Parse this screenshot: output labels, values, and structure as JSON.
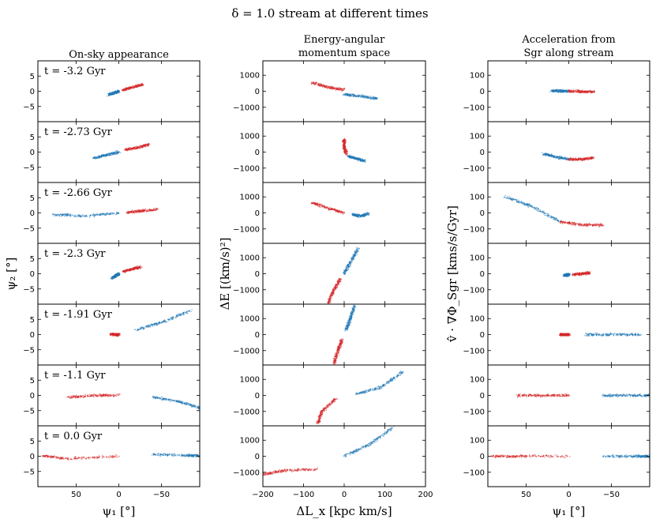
{
  "figure": {
    "title": "δ = 1.0 stream at different times",
    "columns": [
      {
        "title_lines": [
          "On-sky appearance"
        ]
      },
      {
        "title_lines": [
          "Energy-angular",
          "momentum space"
        ]
      },
      {
        "title_lines": [
          "Acceleration from",
          "Sgr along stream"
        ]
      }
    ],
    "ylabels": [
      "ψ₂ [°]",
      "ΔE [(km/s)²]",
      "v̂ · ∇Φ_Sgr [kms/s/Gyr]"
    ],
    "xlabels": [
      "ψ₁ [°]",
      "ΔL_x [kpc km/s]",
      "ψ₁ [°]"
    ],
    "time_labels": [
      "t = -3.2 Gyr",
      "t = -2.73 Gyr",
      "t = -2.66 Gyr",
      "t = -2.3 Gyr",
      "t = -1.91 Gyr",
      "t = -1.1 Gyr",
      "t = 0.0 Gyr"
    ],
    "colors": {
      "leading": "#d62728",
      "trailing": "#1f77b4"
    }
  },
  "chart_data": [
    {
      "type": "scatter",
      "name": "on-sky",
      "xlabel": "ψ₁ [°]",
      "ylabel": "ψ₂ [°]",
      "xlim": [
        95,
        -95
      ],
      "ylim": [
        -10,
        10
      ],
      "xticks": [
        50,
        0,
        -50
      ],
      "yticks": [
        5,
        0,
        -5
      ],
      "rows": [
        {
          "time": "t = -3.2 Gyr",
          "red": [
            [
              -5,
              0.5
            ],
            [
              -15,
              1.2
            ],
            [
              -28,
              2.2
            ]
          ],
          "blue": [
            [
              12,
              -1.2
            ],
            [
              5,
              -0.5
            ],
            [
              0,
              0
            ]
          ]
        },
        {
          "time": "t = -2.73 Gyr",
          "red": [
            [
              -8,
              0.8
            ],
            [
              -22,
              1.5
            ],
            [
              -35,
              2.5
            ]
          ],
          "blue": [
            [
              30,
              -2
            ],
            [
              15,
              -1
            ],
            [
              0,
              0
            ]
          ]
        },
        {
          "time": "t = -2.66 Gyr",
          "red": [
            [
              -10,
              0.2
            ],
            [
              -25,
              0.6
            ],
            [
              -45,
              1.2
            ]
          ],
          "blue": [
            [
              78,
              -0.5
            ],
            [
              40,
              -1
            ],
            [
              0,
              0
            ]
          ]
        },
        {
          "time": "t = -2.3 Gyr",
          "red": [
            [
              -5,
              0.8
            ],
            [
              -15,
              1.5
            ],
            [
              -25,
              2.2
            ]
          ],
          "blue": [
            [
              8,
              -1.5
            ],
            [
              3,
              -0.5
            ],
            [
              0,
              0
            ]
          ]
        },
        {
          "time": "t = -1.91 Gyr",
          "red": [
            [
              10,
              0.2
            ],
            [
              3,
              0
            ],
            [
              0,
              0
            ]
          ],
          "blue": [
            [
              -20,
              1.5
            ],
            [
              -50,
              4
            ],
            [
              -85,
              8
            ]
          ]
        },
        {
          "time": "t = -1.1 Gyr",
          "red": [
            [
              60,
              -0.6
            ],
            [
              30,
              0
            ],
            [
              0,
              0
            ]
          ],
          "blue": [
            [
              -40,
              -0.5
            ],
            [
              -70,
              -2
            ],
            [
              -95,
              -4
            ]
          ]
        },
        {
          "time": "t = 0.0 Gyr",
          "red": [
            [
              90,
              0.2
            ],
            [
              60,
              -0.8
            ],
            [
              0,
              0
            ]
          ],
          "blue": [
            [
              -40,
              0.6
            ],
            [
              -80,
              0.3
            ],
            [
              -95,
              0.2
            ]
          ]
        }
      ]
    },
    {
      "type": "scatter",
      "name": "energy-angular-momentum",
      "xlabel": "ΔL_x [kpc km/s]",
      "ylabel": "ΔE [(km/s)²]",
      "xlim": [
        -200,
        200
      ],
      "ylim": [
        -1900,
        1900
      ],
      "xticks": [
        -200,
        -100,
        0,
        100,
        200
      ],
      "yticks": [
        1000,
        0,
        -1000
      ],
      "rows": [
        {
          "time": "t = -3.2 Gyr",
          "red": [
            [
              -80,
              550
            ],
            [
              -40,
              250
            ],
            [
              0,
              100
            ]
          ],
          "blue": [
            [
              0,
              -200
            ],
            [
              40,
              -300
            ],
            [
              80,
              -450
            ]
          ]
        },
        {
          "time": "t = -2.73 Gyr",
          "red": [
            [
              0,
              800
            ],
            [
              0,
              350
            ],
            [
              5,
              -100
            ]
          ],
          "blue": [
            [
              10,
              -250
            ],
            [
              30,
              -400
            ],
            [
              50,
              -550
            ]
          ]
        },
        {
          "time": "t = -2.66 Gyr",
          "red": [
            [
              -80,
              650
            ],
            [
              -40,
              300
            ],
            [
              0,
              0
            ]
          ],
          "blue": [
            [
              20,
              -100
            ],
            [
              40,
              -200
            ],
            [
              60,
              -50
            ]
          ]
        },
        {
          "time": "t = -2.3 Gyr",
          "red": [
            [
              -40,
              -1800
            ],
            [
              -25,
              -1000
            ],
            [
              -10,
              -300
            ]
          ],
          "blue": [
            [
              0,
              0
            ],
            [
              15,
              700
            ],
            [
              35,
              1600
            ]
          ]
        },
        {
          "time": "t = -1.91 Gyr",
          "red": [
            [
              -25,
              -1800
            ],
            [
              -15,
              -1000
            ],
            [
              -5,
              -300
            ]
          ],
          "blue": [
            [
              5,
              300
            ],
            [
              15,
              1000
            ],
            [
              25,
              1800
            ]
          ]
        },
        {
          "time": "t = -1.1 Gyr",
          "red": [
            [
              -65,
              -1800
            ],
            [
              -55,
              -1000
            ],
            [
              -20,
              -200
            ]
          ],
          "blue": [
            [
              30,
              100
            ],
            [
              90,
              500
            ],
            [
              145,
              1500
            ]
          ]
        },
        {
          "time": "t = 0.0 Gyr",
          "red": [
            [
              -200,
              -1150
            ],
            [
              -150,
              -900
            ],
            [
              -60,
              -800
            ]
          ],
          "blue": [
            [
              0,
              0
            ],
            [
              60,
              700
            ],
            [
              120,
              1800
            ]
          ]
        }
      ]
    },
    {
      "type": "scatter",
      "name": "acceleration",
      "xlabel": "ψ₁ [°]",
      "ylabel": "v̂ · ∇Φ_Sgr [kms/s/Gyr]",
      "xlim": [
        95,
        -95
      ],
      "ylim": [
        -190,
        190
      ],
      "xticks": [
        50,
        0,
        -50
      ],
      "yticks": [
        100,
        0,
        -100
      ],
      "rows": [
        {
          "time": "t = -3.2 Gyr",
          "red": [
            [
              0,
              0
            ],
            [
              -15,
              -2
            ],
            [
              -30,
              -4
            ]
          ],
          "blue": [
            [
              20,
              3
            ],
            [
              10,
              2
            ],
            [
              0,
              0
            ]
          ]
        },
        {
          "time": "t = -2.73 Gyr",
          "red": [
            [
              0,
              -45
            ],
            [
              -15,
              -45
            ],
            [
              -30,
              -35
            ]
          ],
          "blue": [
            [
              30,
              -10
            ],
            [
              15,
              -30
            ],
            [
              0,
              -45
            ]
          ]
        },
        {
          "time": "t = -2.66 Gyr",
          "red": [
            [
              10,
              -55
            ],
            [
              -15,
              -75
            ],
            [
              -40,
              -75
            ]
          ],
          "blue": [
            [
              75,
              100
            ],
            [
              45,
              45
            ],
            [
              10,
              -55
            ]
          ]
        },
        {
          "time": "t = -2.3 Gyr",
          "red": [
            [
              -5,
              -5
            ],
            [
              -15,
              0
            ],
            [
              -25,
              5
            ]
          ],
          "blue": [
            [
              5,
              -10
            ],
            [
              2,
              -8
            ],
            [
              0,
              -5
            ]
          ]
        },
        {
          "time": "t = -1.91 Gyr",
          "red": [
            [
              10,
              0
            ],
            [
              5,
              0
            ],
            [
              0,
              0
            ]
          ],
          "blue": [
            [
              -20,
              0
            ],
            [
              -50,
              0
            ],
            [
              -85,
              0
            ]
          ]
        },
        {
          "time": "t = -1.1 Gyr",
          "red": [
            [
              60,
              0
            ],
            [
              30,
              0
            ],
            [
              0,
              0
            ]
          ],
          "blue": [
            [
              -40,
              0
            ],
            [
              -70,
              0
            ],
            [
              -95,
              0
            ]
          ]
        },
        {
          "time": "t = 0.0 Gyr",
          "red": [
            [
              90,
              0
            ],
            [
              60,
              0
            ],
            [
              0,
              0
            ]
          ],
          "blue": [
            [
              -40,
              0
            ],
            [
              -80,
              0
            ],
            [
              -95,
              0
            ]
          ]
        }
      ]
    }
  ]
}
